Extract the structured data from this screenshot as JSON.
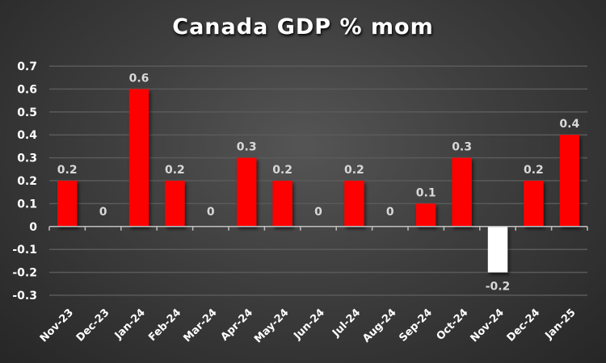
{
  "chart_data": {
    "type": "bar",
    "title": "Canada GDP % mom",
    "xlabel": "",
    "ylabel": "",
    "categories": [
      "Nov-23",
      "Dec-23",
      "Jan-24",
      "Feb-24",
      "Mar-24",
      "Apr-24",
      "May-24",
      "Jun-24",
      "Jul-24",
      "Aug-24",
      "Sep-24",
      "Oct-24",
      "Nov-24",
      "Dec-24",
      "Jan-25"
    ],
    "values": [
      0.2,
      0,
      0.6,
      0.2,
      0,
      0.3,
      0.2,
      0,
      0.2,
      0,
      0.1,
      0.3,
      -0.2,
      0.2,
      0.4
    ],
    "data_labels": [
      "0.2",
      "0",
      "0.6",
      "0.2",
      "0",
      "0.3",
      "0.2",
      "0",
      "0.2",
      "0",
      "0.1",
      "0.3",
      "-0.2",
      "0.2",
      "0.4"
    ],
    "ylim": [
      -0.3,
      0.7
    ],
    "yticks": [
      "0.7",
      "0.6",
      "0.5",
      "0.4",
      "0.3",
      "0.2",
      "0.1",
      "0",
      "-0.1",
      "-0.2",
      "-0.3"
    ],
    "ytick_values": [
      0.7,
      0.6,
      0.5,
      0.4,
      0.3,
      0.2,
      0.1,
      0,
      -0.1,
      -0.2,
      -0.3
    ],
    "grid": true,
    "legend": "none",
    "colors": {
      "positive": "#ff0000",
      "negative": "#ffffff",
      "grid": "#5a5a5a",
      "axis": "#bfbfbf"
    }
  }
}
